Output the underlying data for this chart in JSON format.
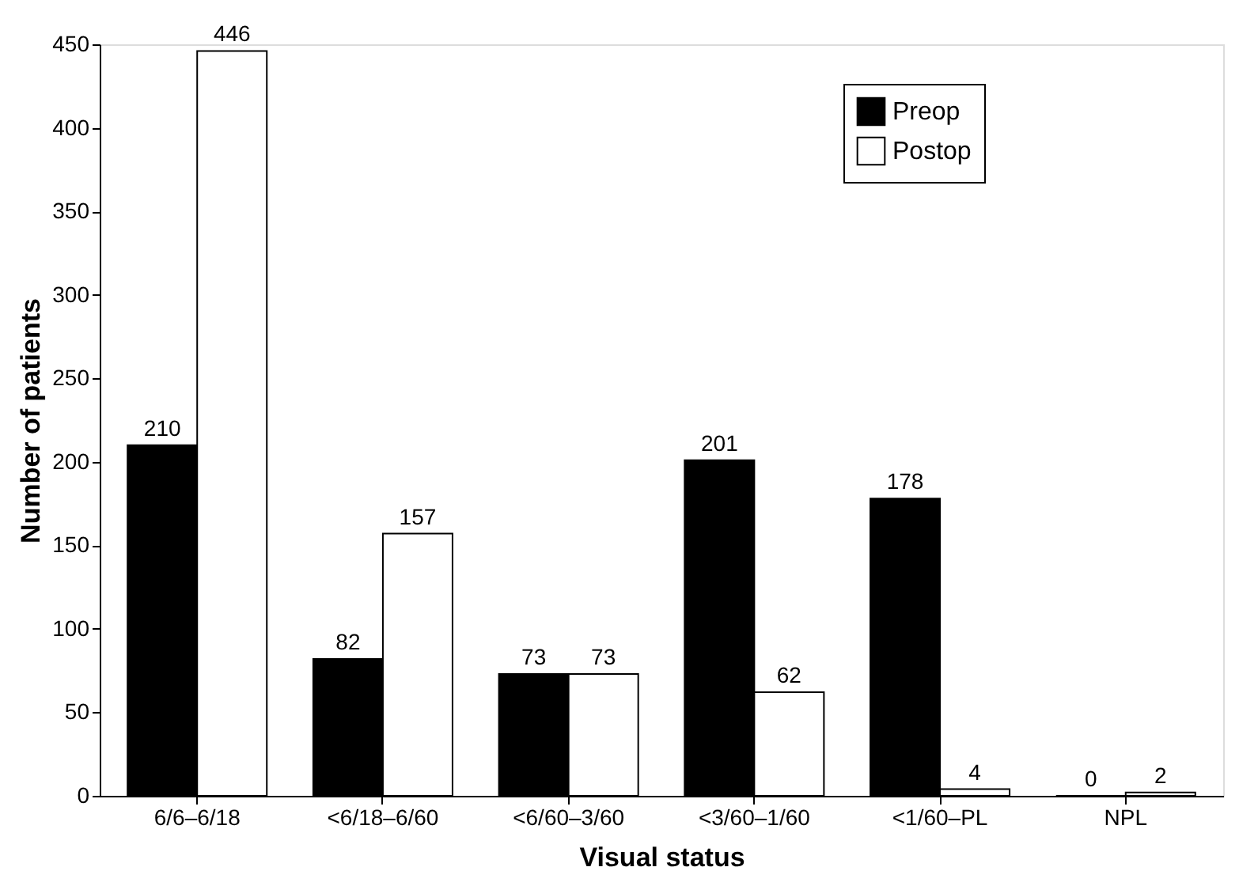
{
  "chart_data": {
    "type": "bar",
    "xlabel": "Visual status",
    "ylabel": "Number of patients",
    "categories": [
      "6/6–6/18",
      "<6/18–6/60",
      "<6/60–3/60",
      "<3/60–1/60",
      "<1/60–PL",
      "NPL"
    ],
    "series": [
      {
        "name": "Preop",
        "color": "#000000",
        "values": [
          210,
          82,
          73,
          201,
          178,
          0
        ]
      },
      {
        "name": "Postop",
        "color": "#ffffff",
        "values": [
          446,
          157,
          73,
          62,
          4,
          2
        ]
      }
    ],
    "ylim": [
      0,
      450
    ],
    "yticks": [
      0,
      50,
      100,
      150,
      200,
      250,
      300,
      350,
      400,
      450
    ],
    "data_labels": true,
    "grid": false,
    "legend": "top right"
  }
}
